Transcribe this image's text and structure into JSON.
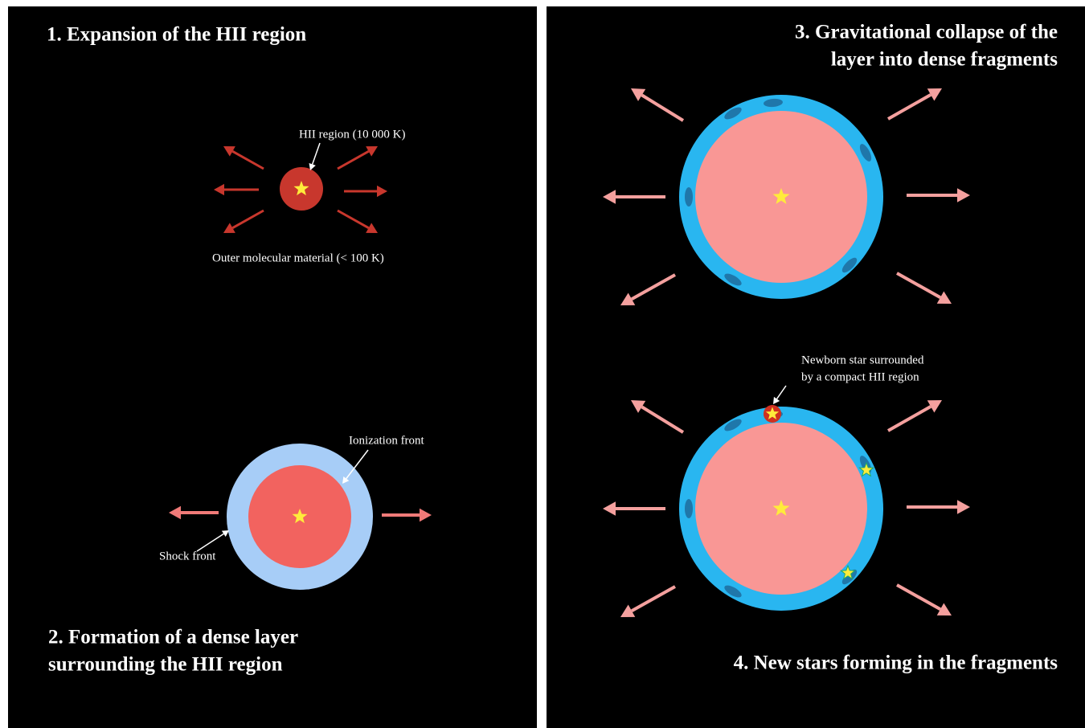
{
  "panels": [
    {
      "title": [
        "1. Expansion of the HII region"
      ],
      "labels": [
        [
          "HII region (10 000 K)"
        ],
        [
          "Outer molecular material (< 100 K)"
        ]
      ]
    },
    {
      "title": [
        "2. Formation of a dense layer",
        "surrounding the HII region"
      ],
      "labels": [
        [
          "Ionization front"
        ],
        [
          "Shock front"
        ]
      ]
    },
    {
      "title": [
        "3. Gravitational collapse of the",
        "layer into dense fragments"
      ]
    },
    {
      "title": [
        "4. New stars forming in the fragments"
      ],
      "labels": [
        [
          "Newborn star surrounded",
          "by a compact HII region"
        ]
      ]
    }
  ]
}
